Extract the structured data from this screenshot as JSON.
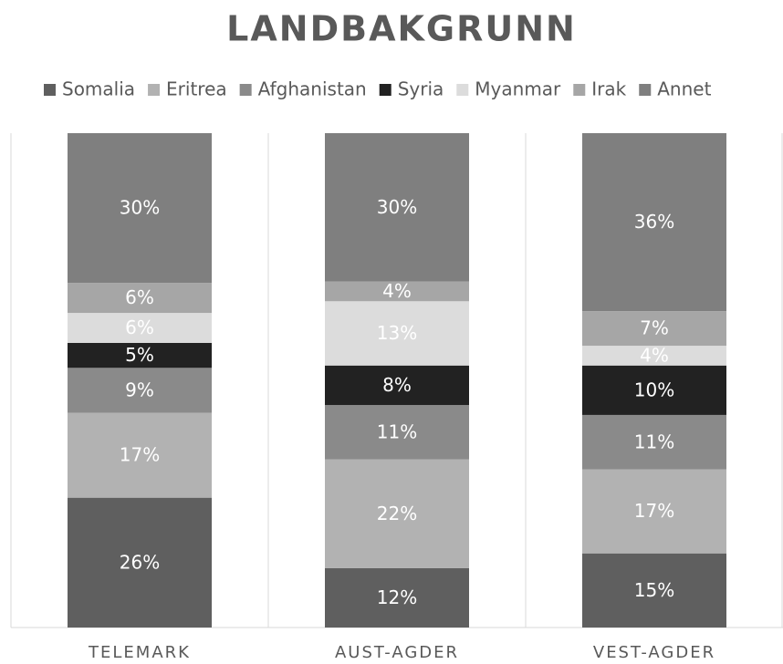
{
  "chart_data": {
    "type": "stacked_bar_100",
    "title": "LANDBAKGRUNN",
    "categories": [
      "TELEMARK",
      "AUST-AGDER",
      "VEST-AGDER"
    ],
    "series": [
      {
        "name": "Somalia",
        "color": "#5f5f5f",
        "values": [
          26,
          12,
          15
        ],
        "value_labels": [
          "26%",
          "12%",
          "15%"
        ]
      },
      {
        "name": "Eritrea",
        "color": "#b2b2b2",
        "values": [
          17,
          22,
          17
        ],
        "value_labels": [
          "17%",
          "22%",
          "17%"
        ]
      },
      {
        "name": "Afghanistan",
        "color": "#8a8a8a",
        "values": [
          9,
          11,
          11
        ],
        "value_labels": [
          "9%",
          "11%",
          "11%"
        ]
      },
      {
        "name": "Syria",
        "color": "#222222",
        "values": [
          5,
          8,
          10
        ],
        "value_labels": [
          "5%",
          "8%",
          "10%"
        ]
      },
      {
        "name": "Myanmar",
        "color": "#dcdcdc",
        "values": [
          6,
          13,
          4
        ],
        "value_labels": [
          "6%",
          "13%",
          "4%"
        ]
      },
      {
        "name": "Irak",
        "color": "#a6a6a6",
        "values": [
          6,
          4,
          7
        ],
        "value_labels": [
          "6%",
          "4%",
          "7%"
        ]
      },
      {
        "name": "Annet",
        "color": "#7f7f7f",
        "values": [
          30,
          30,
          36
        ],
        "value_labels": [
          "30%",
          "30%",
          "36%"
        ]
      }
    ],
    "legend": "top"
  }
}
